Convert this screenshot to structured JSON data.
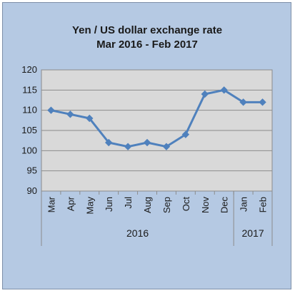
{
  "chart_data": {
    "type": "line",
    "title": "Yen / US dollar exchange rate",
    "subtitle": "Mar 2016 - Feb 2017",
    "xlabel": "",
    "ylabel": "",
    "categories": [
      "Mar",
      "Apr",
      "May",
      "Jun",
      "Jul",
      "Aug",
      "Sep",
      "Oct",
      "Nov",
      "Dec",
      "Jan",
      "Feb"
    ],
    "groups": [
      {
        "label": "2016",
        "count": 10
      },
      {
        "label": "2017",
        "count": 2
      }
    ],
    "series": [
      {
        "values": [
          110,
          109,
          108,
          102,
          101,
          102,
          101,
          104,
          114,
          115,
          112,
          112
        ],
        "color": "#4f81bd"
      }
    ],
    "ylim": [
      90,
      120
    ],
    "yticks": [
      90,
      95,
      100,
      105,
      110,
      115,
      120
    ],
    "grid": true,
    "colors": {
      "background": "#b5c9e3",
      "plot_area": "#d9d9d9",
      "line": "#4f81bd"
    }
  }
}
